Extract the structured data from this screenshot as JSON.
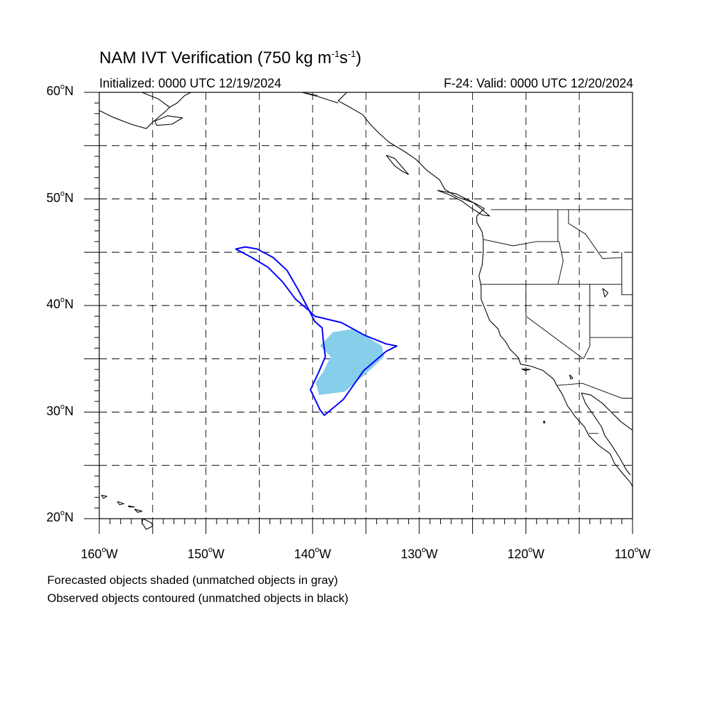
{
  "header": {
    "title_main": "NAM IVT Verification (750 kg m",
    "title_exp1": "-1",
    "title_mid": "s",
    "title_exp2": "-1",
    "title_end": ")",
    "initialized": "Initialized: 0000 UTC 12/19/2024",
    "valid": "F-24: Valid: 0000 UTC 12/20/2024"
  },
  "map": {
    "projection": "cylindrical equidistant",
    "lon_range": [
      -160,
      -110
    ],
    "lat_range": [
      20,
      60
    ],
    "grid": "dashed, every 5 degrees",
    "colors": {
      "forecast_fill": "#87ceeb",
      "observed_contour": "#0000ff",
      "coastline": "#000000",
      "grid": "#000000"
    },
    "lat_labels": [
      {
        "deg": "60",
        "hemi": "N",
        "value": 60
      },
      {
        "deg": "50",
        "hemi": "N",
        "value": 50
      },
      {
        "deg": "40",
        "hemi": "N",
        "value": 40
      },
      {
        "deg": "30",
        "hemi": "N",
        "value": 30
      },
      {
        "deg": "20",
        "hemi": "N",
        "value": 20
      }
    ],
    "lon_labels": [
      {
        "deg": "160",
        "hemi": "W",
        "value": -160
      },
      {
        "deg": "150",
        "hemi": "W",
        "value": -150
      },
      {
        "deg": "140",
        "hemi": "W",
        "value": -140
      },
      {
        "deg": "130",
        "hemi": "W",
        "value": -130
      },
      {
        "deg": "120",
        "hemi": "W",
        "value": -120
      },
      {
        "deg": "110",
        "hemi": "W",
        "value": -110
      }
    ],
    "forecast_object": [
      [
        -139.3,
        36.2
      ],
      [
        -138.1,
        37.5
      ],
      [
        -136.2,
        37.8
      ],
      [
        -134.8,
        37.0
      ],
      [
        -133.5,
        36.2
      ],
      [
        -133.3,
        35.2
      ],
      [
        -135.0,
        33.6
      ],
      [
        -137.0,
        31.9
      ],
      [
        -139.4,
        31.6
      ],
      [
        -139.7,
        32.8
      ],
      [
        -139.0,
        33.8
      ],
      [
        -138.3,
        35.2
      ]
    ],
    "observed_object": [
      [
        -139.8,
        39.0
      ],
      [
        -137.3,
        38.4
      ],
      [
        -135.1,
        37.2
      ],
      [
        -133.1,
        36.4
      ],
      [
        -132.1,
        36.2
      ],
      [
        -133.1,
        35.7
      ],
      [
        -135.2,
        33.9
      ],
      [
        -137.1,
        31.2
      ],
      [
        -138.9,
        29.7
      ],
      [
        -139.3,
        30.2
      ],
      [
        -140.2,
        32.1
      ],
      [
        -139.4,
        33.8
      ],
      [
        -138.8,
        35.2
      ],
      [
        -139.0,
        36.7
      ],
      [
        -139.1,
        37.9
      ],
      [
        -139.8,
        38.5
      ],
      [
        -140.3,
        39.5
      ],
      [
        -141.3,
        41.4
      ],
      [
        -142.4,
        43.3
      ],
      [
        -143.7,
        44.5
      ],
      [
        -145.2,
        45.3
      ],
      [
        -146.3,
        45.5
      ],
      [
        -147.2,
        45.3
      ],
      [
        -145.7,
        44.5
      ],
      [
        -144.2,
        43.6
      ],
      [
        -142.8,
        42.2
      ],
      [
        -141.6,
        40.6
      ],
      [
        -140.3,
        39.5
      ]
    ]
  },
  "legend": {
    "line1": "Forecasted objects shaded (unmatched objects in gray)",
    "line2": "Observed objects contoured (unmatched objects in black)"
  }
}
